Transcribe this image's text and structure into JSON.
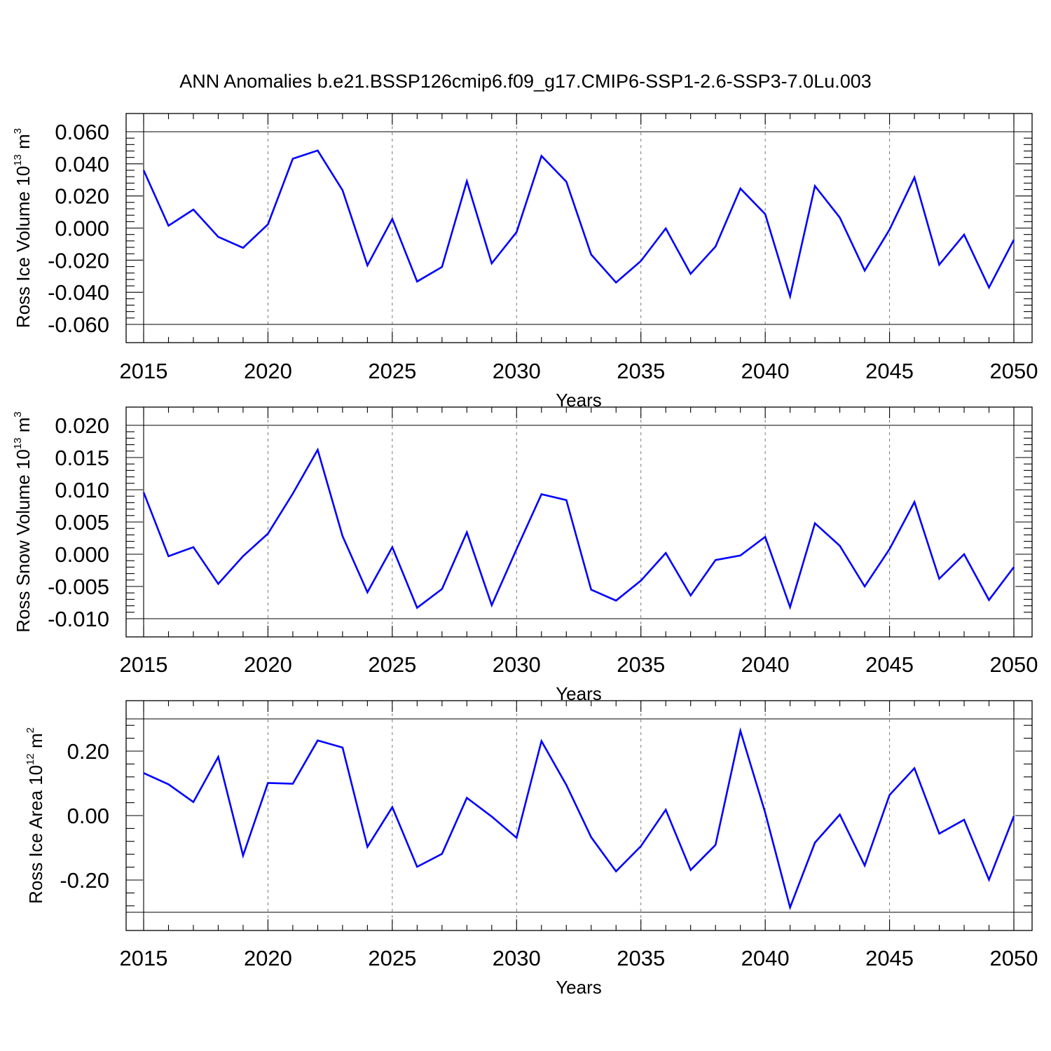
{
  "title": "ANN Anomalies b.e21.BSSP126cmip6.f09_g17.CMIP6-SSP1-2.6-SSP3-7.0Lu.003",
  "colors": {
    "series": "#0000ff",
    "grid": "#777777",
    "axes": "#000000"
  },
  "chart_data": [
    {
      "type": "line",
      "xlabel": "Years",
      "ylabel": {
        "main": "Ross Ice Volume 10",
        "exp": "13",
        "unit": " m",
        "unit_exp": "3"
      },
      "xlim": [
        2015,
        2050
      ],
      "ylim": [
        -0.06,
        0.06
      ],
      "xticks": [
        2015,
        2020,
        2025,
        2030,
        2035,
        2040,
        2045,
        2050
      ],
      "xtick_labels": [
        "2015",
        "2020",
        "2025",
        "2030",
        "2035",
        "2040",
        "2045",
        "2050"
      ],
      "yticks": [
        -0.06,
        -0.04,
        -0.02,
        0,
        0.02,
        0.04,
        0.06
      ],
      "ytick_labels": [
        "-0.060",
        "-0.040",
        "-0.020",
        "0.000",
        "0.020",
        "0.040",
        "0.060"
      ],
      "grid": "vertical dashed lines at labeled years",
      "x": [
        2015,
        2016,
        2017,
        2018,
        2019,
        2020,
        2021,
        2022,
        2023,
        2024,
        2025,
        2026,
        2027,
        2028,
        2029,
        2030,
        2031,
        2032,
        2033,
        2034,
        2035,
        2036,
        2037,
        2038,
        2039,
        2040,
        2041,
        2042,
        2043,
        2044,
        2045,
        2046,
        2047,
        2048,
        2049,
        2050
      ],
      "series": [
        {
          "values": [
            0.036,
            0.0015,
            0.0115,
            -0.0055,
            -0.0123,
            0.0023,
            0.0432,
            0.0483,
            0.0235,
            -0.0232,
            0.0057,
            -0.0333,
            -0.0242,
            0.0292,
            -0.022,
            -0.0025,
            0.0449,
            0.0289,
            -0.0165,
            -0.0339,
            -0.0205,
            -0.0002,
            -0.0285,
            -0.0115,
            0.0246,
            0.0087,
            -0.0425,
            0.0262,
            0.0065,
            -0.0265,
            -0.0009,
            0.0315,
            -0.0228,
            -0.0041,
            -0.037,
            -0.0073
          ]
        }
      ]
    },
    {
      "type": "line",
      "xlabel": "Years",
      "ylabel": {
        "main": "Ross Snow Volume 10",
        "exp": "13",
        "unit": " m",
        "unit_exp": "3"
      },
      "xlim": [
        2015,
        2050
      ],
      "ylim": [
        -0.01,
        0.02
      ],
      "xticks": [
        2015,
        2020,
        2025,
        2030,
        2035,
        2040,
        2045,
        2050
      ],
      "xtick_labels": [
        "2015",
        "2020",
        "2025",
        "2030",
        "2035",
        "2040",
        "2045",
        "2050"
      ],
      "yticks": [
        -0.01,
        -0.005,
        0,
        0.005,
        0.01,
        0.015,
        0.02
      ],
      "ytick_labels": [
        "-0.010",
        "-0.005",
        "0.000",
        "0.005",
        "0.010",
        "0.015",
        "0.020"
      ],
      "grid": "vertical dashed lines at labeled years",
      "x": [
        2015,
        2016,
        2017,
        2018,
        2019,
        2020,
        2021,
        2022,
        2023,
        2024,
        2025,
        2026,
        2027,
        2028,
        2029,
        2030,
        2031,
        2032,
        2033,
        2034,
        2035,
        2036,
        2037,
        2038,
        2039,
        2040,
        2041,
        2042,
        2043,
        2044,
        2045,
        2046,
        2047,
        2048,
        2049,
        2050
      ],
      "series": [
        {
          "values": [
            0.0096,
            -0.0003,
            0.0011,
            -0.0046,
            -0.0003,
            0.0032,
            0.0094,
            0.0162,
            0.0028,
            -0.0059,
            0.0011,
            -0.0083,
            -0.0054,
            0.0034,
            -0.0079,
            0.0008,
            0.0093,
            0.0084,
            -0.0055,
            -0.0072,
            -0.0041,
            0.0002,
            -0.0064,
            -0.0009,
            -0.0002,
            0.0027,
            -0.0082,
            0.0048,
            0.0013,
            -0.005,
            0.0008,
            0.0081,
            -0.0038,
            0.0,
            -0.0071,
            -0.002
          ]
        }
      ]
    },
    {
      "type": "line",
      "xlabel": "Years",
      "ylabel": {
        "main": "Ross Ice Area 10",
        "exp": "12",
        "unit": " m",
        "unit_exp": "2"
      },
      "xlim": [
        2015,
        2050
      ],
      "ylim": [
        -0.3,
        0.3
      ],
      "xticks": [
        2015,
        2020,
        2025,
        2030,
        2035,
        2040,
        2045,
        2050
      ],
      "xtick_labels": [
        "2015",
        "2020",
        "2025",
        "2030",
        "2035",
        "2040",
        "2045",
        "2050"
      ],
      "yticks": [
        -0.2,
        0,
        0.2
      ],
      "ytick_labels": [
        "-0.20",
        "0.00",
        "0.20"
      ],
      "grid": "vertical dashed lines at labeled years",
      "x": [
        2015,
        2016,
        2017,
        2018,
        2019,
        2020,
        2021,
        2022,
        2023,
        2024,
        2025,
        2026,
        2027,
        2028,
        2029,
        2030,
        2031,
        2032,
        2033,
        2034,
        2035,
        2036,
        2037,
        2038,
        2039,
        2040,
        2041,
        2042,
        2043,
        2044,
        2045,
        2046,
        2047,
        2048,
        2049,
        2050
      ],
      "series": [
        {
          "values": [
            0.132,
            0.097,
            0.042,
            0.182,
            -0.124,
            0.101,
            0.099,
            0.233,
            0.211,
            -0.097,
            0.026,
            -0.159,
            -0.119,
            0.055,
            -0.003,
            -0.069,
            0.231,
            0.095,
            -0.067,
            -0.173,
            -0.095,
            0.018,
            -0.169,
            -0.091,
            0.263,
            0.009,
            -0.285,
            -0.084,
            0.003,
            -0.155,
            0.064,
            0.147,
            -0.056,
            -0.013,
            -0.199,
            -0.002
          ]
        }
      ]
    }
  ]
}
